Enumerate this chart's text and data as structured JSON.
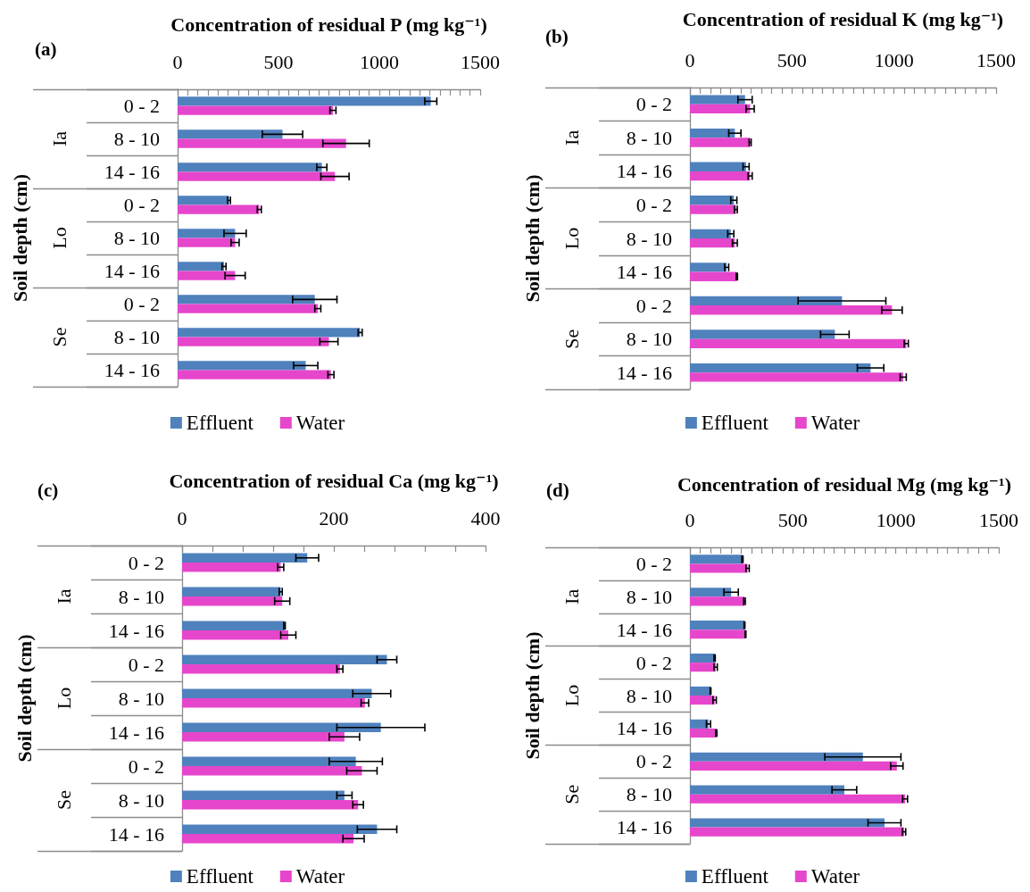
{
  "chart_data": [
    {
      "type": "bar",
      "orientation": "horizontal",
      "title": "(a)",
      "xlabel": "Concentration of residual P (mg kg⁻¹)",
      "ylabel": "Soil depth (cm)",
      "categories": [
        "0 - 2",
        "8 - 10",
        "14 - 16",
        "0 - 2",
        "8 - 10",
        "14 - 16",
        "0 - 2",
        "8 - 10",
        "14 - 16"
      ],
      "annotations": [
        "Ia",
        "Lo",
        "Se"
      ],
      "series": [
        {
          "name": "Effluent",
          "color": "#4f81bd",
          "values": [
            1255,
            520,
            715,
            255,
            285,
            230,
            680,
            905,
            635
          ],
          "errors": [
            30,
            100,
            25,
            7,
            55,
            10,
            110,
            10,
            60
          ]
        },
        {
          "name": "Water",
          "color": "#e646cc",
          "values": [
            770,
            835,
            780,
            405,
            285,
            285,
            695,
            750,
            760
          ],
          "errors": [
            15,
            115,
            70,
            10,
            20,
            50,
            15,
            45,
            15
          ]
        }
      ],
      "xlim": [
        0,
        1500
      ],
      "xticks": [
        0,
        {
          "value": 50,
          "label": null
        },
        {
          "value": 100,
          "label": null
        },
        {
          "value": 150,
          "label": null
        },
        {
          "value": 200,
          "label": null
        },
        {
          "value": 250,
          "label": null
        },
        {
          "value": 300,
          "label": null
        },
        {
          "value": 350,
          "label": null
        },
        {
          "value": 400,
          "label": null
        },
        {
          "value": 450,
          "label": null
        },
        500,
        {
          "value": 550,
          "label": null
        },
        {
          "value": 600,
          "label": null
        },
        {
          "value": 650,
          "label": null
        },
        {
          "value": 700,
          "label": null
        },
        {
          "value": 750,
          "label": null
        },
        {
          "value": 800,
          "label": null
        },
        {
          "value": 850,
          "label": null
        },
        {
          "value": 900,
          "label": null
        },
        {
          "value": 950,
          "label": null
        },
        1000,
        {
          "value": 1050,
          "label": null
        },
        {
          "value": 1100,
          "label": null
        },
        {
          "value": 1150,
          "label": null
        },
        {
          "value": 1200,
          "label": null
        },
        {
          "value": 1250,
          "label": null
        },
        {
          "value": 1300,
          "label": null
        },
        {
          "value": 1350,
          "label": null
        },
        {
          "value": 1400,
          "label": null
        },
        {
          "value": 1450,
          "label": null
        },
        1500
      ],
      "legend": "bottom"
    },
    {
      "type": "bar",
      "orientation": "horizontal",
      "title": "(b)",
      "xlabel": "Concentration of residual K (mg kg⁻¹)",
      "ylabel": "Soil depth (cm)",
      "categories": [
        "0 - 2",
        "8 - 10",
        "14 - 16",
        "0 - 2",
        "8 - 10",
        "14 - 16",
        "0 - 2",
        "8 - 10",
        "14 - 16"
      ],
      "annotations": [
        "Ia",
        "Lo",
        "Se"
      ],
      "series": [
        {
          "name": "Effluent",
          "color": "#4f81bd",
          "values": [
            270,
            220,
            275,
            215,
            200,
            180,
            745,
            710,
            885
          ],
          "errors": [
            35,
            30,
            15,
            15,
            15,
            10,
            215,
            70,
            65
          ]
        },
        {
          "name": "Water",
          "color": "#e646cc",
          "values": [
            295,
            295,
            295,
            225,
            220,
            230,
            990,
            1060,
            1045
          ],
          "errors": [
            20,
            5,
            10,
            7,
            12,
            3,
            50,
            10,
            15
          ]
        }
      ],
      "xlim": [
        0,
        1500
      ],
      "xticks": [
        0,
        {
          "value": 50,
          "label": null
        },
        {
          "value": 100,
          "label": null
        },
        {
          "value": 150,
          "label": null
        },
        {
          "value": 200,
          "label": null
        },
        {
          "value": 250,
          "label": null
        },
        {
          "value": 300,
          "label": null
        },
        {
          "value": 350,
          "label": null
        },
        {
          "value": 400,
          "label": null
        },
        {
          "value": 450,
          "label": null
        },
        500,
        {
          "value": 550,
          "label": null
        },
        {
          "value": 600,
          "label": null
        },
        {
          "value": 650,
          "label": null
        },
        {
          "value": 700,
          "label": null
        },
        {
          "value": 750,
          "label": null
        },
        {
          "value": 800,
          "label": null
        },
        {
          "value": 850,
          "label": null
        },
        {
          "value": 900,
          "label": null
        },
        {
          "value": 950,
          "label": null
        },
        1000,
        {
          "value": 1050,
          "label": null
        },
        {
          "value": 1100,
          "label": null
        },
        {
          "value": 1150,
          "label": null
        },
        {
          "value": 1200,
          "label": null
        },
        {
          "value": 1250,
          "label": null
        },
        {
          "value": 1300,
          "label": null
        },
        {
          "value": 1350,
          "label": null
        },
        {
          "value": 1400,
          "label": null
        },
        {
          "value": 1450,
          "label": null
        },
        1500
      ],
      "legend": "bottom"
    },
    {
      "type": "bar",
      "orientation": "horizontal",
      "title": "(c)",
      "xlabel": "Concentration of residual Ca (mg kg⁻¹)",
      "ylabel": "Soil depth (cm)",
      "categories": [
        "0 - 2",
        "8 - 10",
        "14 - 16",
        "0 - 2",
        "8 - 10",
        "14 - 16",
        "0 - 2",
        "8 - 10",
        "14 - 16"
      ],
      "annotations": [
        "Ia",
        "Lo",
        "Se"
      ],
      "series": [
        {
          "name": "Effluent",
          "color": "#4f81bd",
          "values": [
            165,
            130,
            135,
            270,
            250,
            262,
            229,
            214,
            257
          ],
          "errors": [
            15,
            2,
            1,
            13,
            25,
            58,
            35,
            10,
            26
          ]
        },
        {
          "name": "Water",
          "color": "#e646cc",
          "values": [
            130,
            132,
            140,
            208,
            241,
            214,
            237,
            232,
            226
          ],
          "errors": [
            4,
            10,
            10,
            4,
            5,
            20,
            20,
            7,
            14
          ]
        }
      ],
      "xlim": [
        0,
        400
      ],
      "xticks": [
        0,
        {
          "value": 40,
          "label": null
        },
        {
          "value": 80,
          "label": null
        },
        {
          "value": 120,
          "label": null
        },
        {
          "value": 160,
          "label": null
        },
        200,
        {
          "value": 240,
          "label": null
        },
        {
          "value": 280,
          "label": null
        },
        {
          "value": 320,
          "label": null
        },
        {
          "value": 360,
          "label": null
        },
        400
      ],
      "legend": "bottom"
    },
    {
      "type": "bar",
      "orientation": "horizontal",
      "title": "(d)",
      "xlabel": "Concentration of residual Mg (mg kg⁻¹)",
      "ylabel": "Soil depth (cm)",
      "categories": [
        "0 - 2",
        "8 - 10",
        "14 - 16",
        "0 - 2",
        "8 - 10",
        "14 - 16",
        "0 - 2",
        "8 - 10",
        "14 - 16"
      ],
      "annotations": [
        "Ia",
        "Lo",
        "Se"
      ],
      "series": [
        {
          "name": "Effluent",
          "color": "#4f81bd",
          "values": [
            255,
            200,
            265,
            120,
            100,
            90,
            840,
            750,
            945
          ],
          "errors": [
            3,
            35,
            2,
            3,
            2,
            10,
            185,
            60,
            80
          ]
        },
        {
          "name": "Water",
          "color": "#e646cc",
          "values": [
            280,
            265,
            270,
            125,
            120,
            128,
            1005,
            1045,
            1040
          ],
          "errors": [
            8,
            4,
            2,
            8,
            8,
            3,
            30,
            12,
            8
          ]
        }
      ],
      "xlim": [
        0,
        1500
      ],
      "xticks": [
        0,
        {
          "value": 50,
          "label": null
        },
        {
          "value": 100,
          "label": null
        },
        {
          "value": 150,
          "label": null
        },
        {
          "value": 200,
          "label": null
        },
        {
          "value": 250,
          "label": null
        },
        {
          "value": 300,
          "label": null
        },
        {
          "value": 350,
          "label": null
        },
        {
          "value": 400,
          "label": null
        },
        {
          "value": 450,
          "label": null
        },
        500,
        {
          "value": 550,
          "label": null
        },
        {
          "value": 600,
          "label": null
        },
        {
          "value": 650,
          "label": null
        },
        {
          "value": 700,
          "label": null
        },
        {
          "value": 750,
          "label": null
        },
        {
          "value": 800,
          "label": null
        },
        {
          "value": 850,
          "label": null
        },
        {
          "value": 900,
          "label": null
        },
        {
          "value": 950,
          "label": null
        },
        1000,
        {
          "value": 1050,
          "label": null
        },
        {
          "value": 1100,
          "label": null
        },
        {
          "value": 1150,
          "label": null
        },
        {
          "value": 1200,
          "label": null
        },
        {
          "value": 1250,
          "label": null
        },
        {
          "value": 1300,
          "label": null
        },
        {
          "value": 1350,
          "label": null
        },
        {
          "value": 1400,
          "label": null
        },
        {
          "value": 1450,
          "label": null
        },
        1500
      ],
      "legend": "bottom"
    }
  ]
}
